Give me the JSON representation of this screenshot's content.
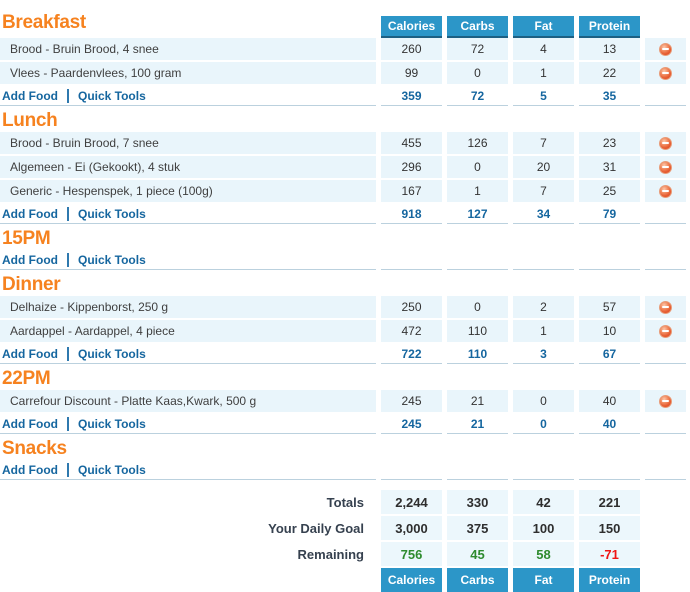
{
  "columns": [
    "Calories",
    "Carbs",
    "Fat",
    "Protein"
  ],
  "links": {
    "add_food": "Add Food",
    "quick_tools": "Quick Tools"
  },
  "icons": {
    "delete": "minus-circle-icon"
  },
  "colors": {
    "accent_orange": "#F6821F",
    "header_blue": "#2C96C8",
    "header_blue_border": "#1D6083",
    "link_blue": "#15669F",
    "row_bg": "#E9F5FB",
    "positive_green": "#2E8B2E",
    "negative_red": "#F01414"
  },
  "sections": [
    {
      "title": "Breakfast",
      "rows": [
        {
          "desc": "Brood - Bruin Brood, 4 snee",
          "values": [
            "260",
            "72",
            "4",
            "13"
          ]
        },
        {
          "desc": "Vlees - Paardenvlees, 100 gram",
          "values": [
            "99",
            "0",
            "1",
            "22"
          ]
        }
      ],
      "totals": [
        "359",
        "72",
        "5",
        "35"
      ]
    },
    {
      "title": "Lunch",
      "rows": [
        {
          "desc": "Brood - Bruin Brood, 7 snee",
          "values": [
            "455",
            "126",
            "7",
            "23"
          ]
        },
        {
          "desc": "Algemeen - Ei (Gekookt), 4 stuk",
          "values": [
            "296",
            "0",
            "20",
            "31"
          ]
        },
        {
          "desc": "Generic - Hespenspek, 1 piece (100g)",
          "values": [
            "167",
            "1",
            "7",
            "25"
          ]
        }
      ],
      "totals": [
        "918",
        "127",
        "34",
        "79"
      ]
    },
    {
      "title": "15PM",
      "rows": [],
      "totals": null
    },
    {
      "title": "Dinner",
      "rows": [
        {
          "desc": "Delhaize - Kippenborst, 250 g",
          "values": [
            "250",
            "0",
            "2",
            "57"
          ]
        },
        {
          "desc": "Aardappel - Aardappel, 4 piece",
          "values": [
            "472",
            "110",
            "1",
            "10"
          ]
        }
      ],
      "totals": [
        "722",
        "110",
        "3",
        "67"
      ]
    },
    {
      "title": "22PM",
      "rows": [
        {
          "desc": "Carrefour Discount - Platte Kaas,Kwark, 500 g",
          "values": [
            "245",
            "21",
            "0",
            "40"
          ]
        }
      ],
      "totals": [
        "245",
        "21",
        "0",
        "40"
      ]
    },
    {
      "title": "Snacks",
      "rows": [],
      "totals": null
    }
  ],
  "summary": {
    "rows": [
      {
        "label": "Totals",
        "values": [
          "2,244",
          "330",
          "42",
          "221"
        ]
      },
      {
        "label": "Your Daily Goal",
        "values": [
          "3,000",
          "375",
          "100",
          "150"
        ]
      },
      {
        "label": "Remaining",
        "values": [
          "756",
          "45",
          "58",
          "-71"
        ]
      }
    ]
  }
}
